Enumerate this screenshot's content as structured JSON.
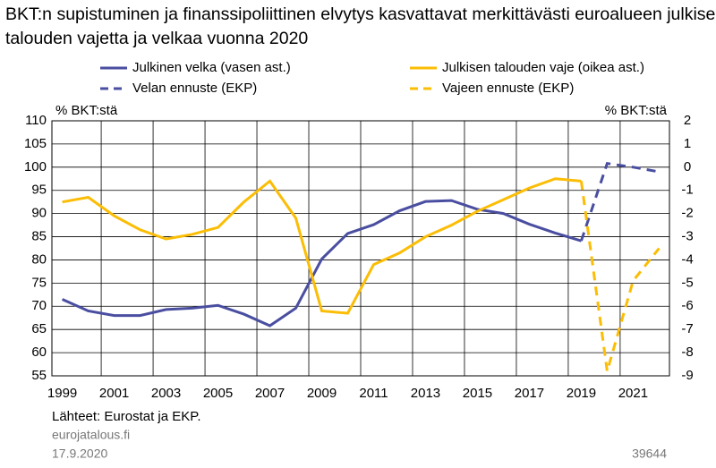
{
  "chart_data": {
    "type": "line",
    "title": "BKT:n supistuminen ja finanssipoliittinen elvytys kasvattavat merkittävästi euroalueen julkisen talouden vajetta ja velkaa vuonna 2020",
    "y_label": "% BKT:stä",
    "y2_label": "% BKT:stä",
    "x": [
      1999,
      2000,
      2001,
      2002,
      2003,
      2004,
      2005,
      2006,
      2007,
      2008,
      2009,
      2010,
      2011,
      2012,
      2013,
      2014,
      2015,
      2016,
      2017,
      2018,
      2019,
      2020,
      2021,
      2022
    ],
    "xlim": [
      1998.6,
      2022.4
    ],
    "xticks": [
      1999,
      2001,
      2003,
      2005,
      2007,
      2009,
      2011,
      2013,
      2015,
      2017,
      2019,
      2021
    ],
    "ylim": [
      55,
      110
    ],
    "yticks": [
      55,
      60,
      65,
      70,
      75,
      80,
      85,
      90,
      95,
      100,
      105,
      110
    ],
    "y2lim": [
      -9,
      2
    ],
    "y2ticks": [
      -9,
      -8,
      -7,
      -6,
      -5,
      -4,
      -3,
      -2,
      -1,
      0,
      1,
      2
    ],
    "grid": true,
    "series": [
      {
        "name": "Julkinen velka (vasen ast.)",
        "color": "#4a4ea0",
        "dashed": false,
        "axis": "y",
        "values": [
          71.5,
          69.0,
          68.0,
          68.0,
          69.3,
          69.6,
          70.2,
          68.3,
          65.8,
          69.6,
          80.2,
          85.7,
          87.6,
          90.6,
          92.6,
          92.8,
          90.9,
          90.0,
          87.7,
          85.8,
          84.1,
          null,
          null,
          null
        ]
      },
      {
        "name": "Velan ennuste (EKP)",
        "color": "#4a4ea0",
        "dashed": true,
        "axis": "y",
        "values": [
          null,
          null,
          null,
          null,
          null,
          null,
          null,
          null,
          null,
          null,
          null,
          null,
          null,
          null,
          null,
          null,
          null,
          null,
          null,
          null,
          84.1,
          100.8,
          100.0,
          99.0
        ]
      },
      {
        "name": "Julkisen talouden vaje (oikea ast.)",
        "color": "#fbbd05",
        "dashed": false,
        "axis": "y2",
        "values": [
          -1.5,
          -1.3,
          -2.1,
          -2.7,
          -3.1,
          -2.9,
          -2.6,
          -1.5,
          -0.6,
          -2.2,
          -6.2,
          -6.3,
          -4.2,
          -3.7,
          -3.0,
          -2.5,
          -1.9,
          -1.4,
          -0.9,
          -0.5,
          -0.6,
          null,
          null,
          null
        ]
      },
      {
        "name": "Vajeen ennuste (EKP)",
        "color": "#fbbd05",
        "dashed": true,
        "axis": "y2",
        "values": [
          null,
          null,
          null,
          null,
          null,
          null,
          null,
          null,
          null,
          null,
          null,
          null,
          null,
          null,
          null,
          null,
          null,
          null,
          null,
          null,
          -0.6,
          -8.8,
          -4.9,
          -3.5
        ]
      }
    ],
    "source": "Lähteet: Eurostat ja EKP.",
    "site": "eurojatalous.fi",
    "date": "17.9.2020",
    "id": "39644"
  }
}
